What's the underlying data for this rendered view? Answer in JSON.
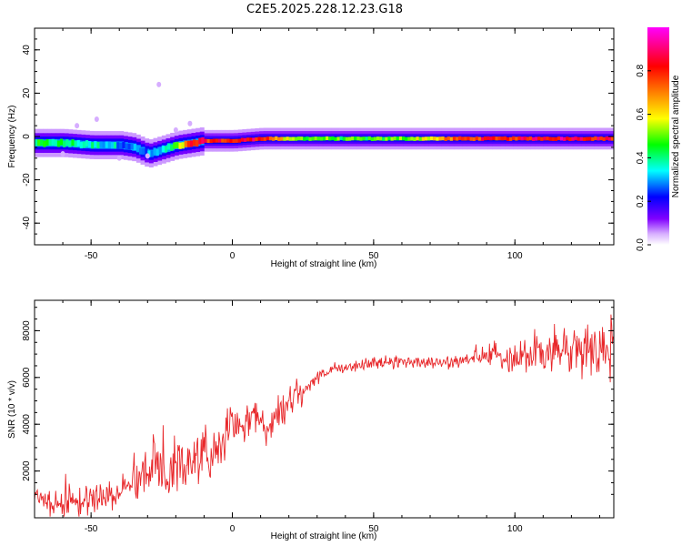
{
  "title": "C2E5.2025.228.12.23.G18",
  "chart_data": [
    {
      "type": "heatmap",
      "xlabel": "Height of straight line (km)",
      "ylabel": "Frequency (Hz)",
      "xlim": [
        -70,
        135
      ],
      "ylim": [
        -50,
        50
      ],
      "xticks": [
        -50,
        0,
        50,
        100
      ],
      "yticks": [
        -40,
        -20,
        0,
        20,
        40
      ],
      "colorbar": {
        "label": "Normalized spectral amplitude",
        "range": [
          0,
          1
        ],
        "ticks": [
          0.0,
          0.2,
          0.4,
          0.6,
          0.8
        ],
        "tick_labels": [
          "0.0",
          "0.2",
          "0.4",
          "0.6",
          "0.8"
        ],
        "colormap": [
          "#ffffff",
          "#8000ff",
          "#0000ff",
          "#00ffff",
          "#00ff00",
          "#ffff00",
          "#ff8000",
          "#ff0000",
          "#ff00ff"
        ]
      },
      "ridge": {
        "x": [
          -70,
          -60,
          -50,
          -40,
          -35,
          -30,
          -25,
          -20,
          -15,
          -10,
          0,
          10,
          20,
          30,
          40,
          50,
          60,
          70,
          80,
          90,
          100,
          110,
          120,
          135
        ],
        "frequency": [
          -3,
          -3,
          -4,
          -4,
          -5,
          -8,
          -6,
          -4,
          -3,
          -2,
          -2,
          -1,
          -1,
          -1,
          -1,
          -1,
          -1,
          -1,
          -1,
          -1,
          -1,
          -1,
          -1,
          -1
        ],
        "amplitude": [
          0.45,
          0.45,
          0.4,
          0.35,
          0.3,
          0.3,
          0.35,
          0.5,
          0.85,
          0.85,
          0.85,
          0.9,
          0.55,
          0.55,
          0.5,
          0.5,
          0.55,
          0.65,
          0.8,
          0.85,
          0.85,
          0.9,
          0.9,
          0.85
        ]
      }
    },
    {
      "type": "line",
      "xlabel": "Height of straight line (km)",
      "ylabel": "SNR (10 * v/v)",
      "xlim": [
        -70,
        135
      ],
      "ylim": [
        0,
        9300
      ],
      "xticks": [
        -50,
        0,
        50,
        100
      ],
      "yticks": [
        2000,
        4000,
        6000,
        8000
      ],
      "color": "#e8272a",
      "series": [
        {
          "x": [
            -70,
            -65,
            -60,
            -55,
            -50,
            -45,
            -40,
            -35,
            -30,
            -27,
            -25,
            -20,
            -15,
            -12,
            -10,
            -5,
            0,
            5,
            10,
            13,
            15,
            20,
            25,
            30,
            35,
            40,
            45,
            50,
            55,
            60,
            65,
            70,
            75,
            80,
            85,
            90,
            95,
            100,
            105,
            110,
            115,
            120,
            125,
            130,
            135
          ],
          "y": [
            900,
            700,
            650,
            700,
            750,
            900,
            1200,
            1700,
            2000,
            2500,
            2200,
            2400,
            2100,
            2300,
            2700,
            3200,
            3800,
            4100,
            4300,
            3600,
            4200,
            5000,
            5400,
            6000,
            6300,
            6400,
            6550,
            6600,
            6650,
            6700,
            6700,
            6600,
            6650,
            6700,
            6800,
            6900,
            6900,
            6950,
            7000,
            7050,
            7100,
            7150,
            7200,
            7250,
            7300
          ]
        }
      ]
    }
  ]
}
